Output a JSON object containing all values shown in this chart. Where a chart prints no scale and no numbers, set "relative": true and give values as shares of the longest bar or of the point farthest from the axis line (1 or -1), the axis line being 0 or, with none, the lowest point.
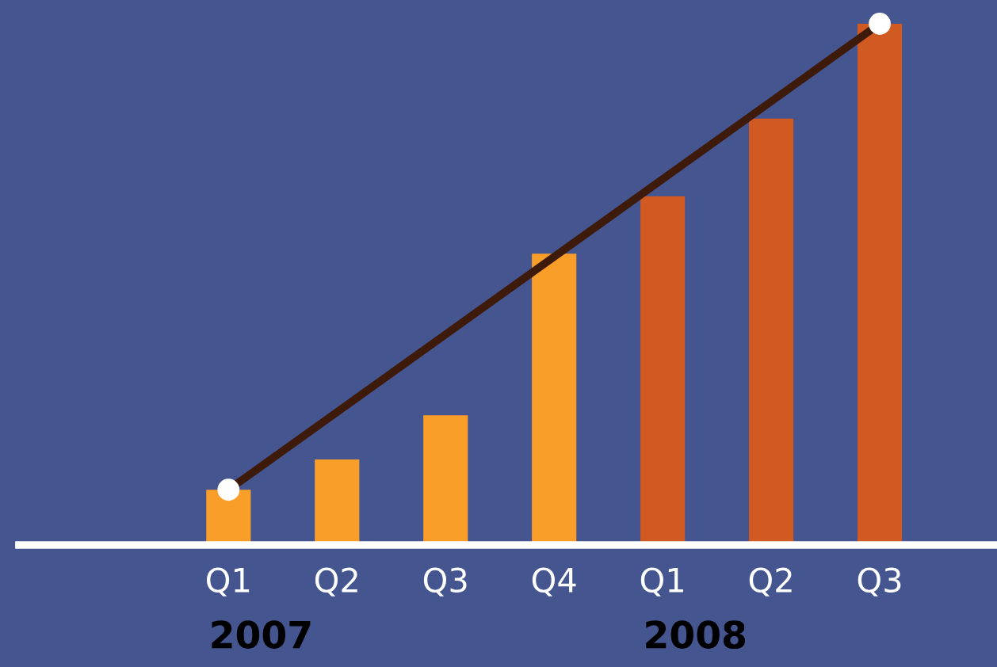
{
  "chart_data": {
    "type": "bar",
    "relative": true,
    "legend": false,
    "grid": false,
    "categories": [
      "Q1",
      "Q2",
      "Q3",
      "Q4",
      "Q1",
      "Q2",
      "Q3"
    ],
    "series": [
      {
        "colors": [
          "#fa9e2a",
          "#fa9e2a",
          "#fa9e2a",
          "#fa9e2a",
          "#d05a21",
          "#d05a21",
          "#d05a21"
        ],
        "values": [
          0.106,
          0.164,
          0.249,
          0.559,
          0.669,
          0.818,
          1.0
        ]
      },
      {
        "type": "line",
        "color": "#3d1a0a",
        "marker": "circle",
        "values": [
          0.106,
          null,
          null,
          null,
          null,
          null,
          1.0
        ]
      }
    ],
    "annotations": [
      "2007",
      "2008"
    ]
  }
}
